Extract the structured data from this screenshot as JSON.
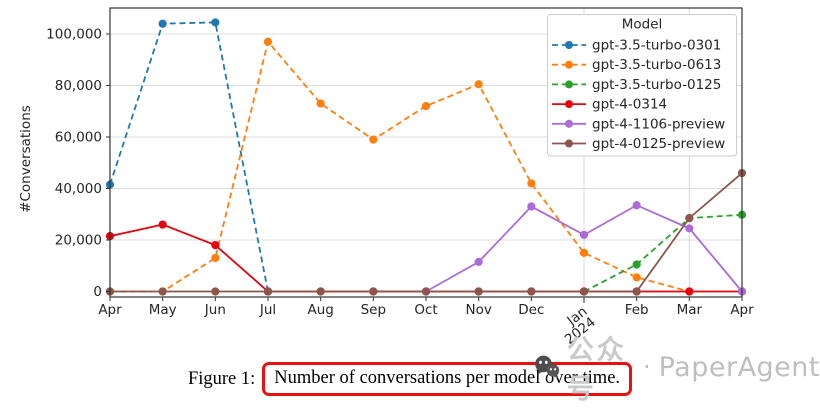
{
  "figure": {
    "caption_prefix": "Figure 1:",
    "caption_boxed": "Number of conversations per model over time.",
    "highlight_box_color": "#ea1010"
  },
  "watermark": {
    "logo_icon": "wechat-logo-icon",
    "brand_cn": "公众号",
    "separator": "·",
    "brand_en": "PaperAgent",
    "text_color": "#c4c4c4"
  },
  "chart_data": {
    "type": "line",
    "title": "",
    "xlabel": "",
    "ylabel": "#Conversations",
    "legend_title": "Model",
    "legend_position": "upper right",
    "grid": true,
    "categories": [
      "Apr",
      "May",
      "Jun",
      "Jul",
      "Aug",
      "Sep",
      "Oct",
      "Nov",
      "Dec",
      "Jan 2024",
      "Feb",
      "Mar",
      "Apr"
    ],
    "rotated_tick_index": 9,
    "rotated_tick_lines": [
      "Jan",
      "2024"
    ],
    "vgrid_categories": [
      9,
      11
    ],
    "yticks": [
      0,
      20000,
      40000,
      60000,
      80000,
      100000
    ],
    "ytick_labels": [
      "0",
      "20,000",
      "40,000",
      "60,000",
      "80,000",
      "100,000"
    ],
    "ylim": [
      -2500,
      110000
    ],
    "series": [
      {
        "name": "gpt-3.5-turbo-0301",
        "color": "#1f77b4",
        "line_style": "dashed",
        "values": [
          41500,
          104000,
          104500,
          0,
          null,
          null,
          null,
          null,
          null,
          null,
          null,
          null,
          null
        ]
      },
      {
        "name": "gpt-3.5-turbo-0613",
        "color": "#ff7f0e",
        "line_style": "dashed",
        "values": [
          0,
          0,
          13000,
          97000,
          73000,
          59000,
          72000,
          80500,
          42000,
          15000,
          5500,
          0,
          null
        ]
      },
      {
        "name": "gpt-3.5-turbo-0125",
        "color": "#2ba02b",
        "line_style": "dashed",
        "values": [
          null,
          null,
          null,
          null,
          null,
          null,
          null,
          null,
          null,
          0,
          10500,
          28500,
          29800
        ]
      },
      {
        "name": "gpt-4-0314",
        "color": "#e8000b",
        "line_style": "solid",
        "values": [
          21500,
          26000,
          18000,
          0,
          0,
          0,
          0,
          0,
          0,
          0,
          0,
          0,
          0
        ]
      },
      {
        "name": "gpt-4-1106-preview",
        "color": "#ab6bd8",
        "line_style": "solid",
        "values": [
          null,
          null,
          null,
          null,
          null,
          null,
          0,
          11500,
          33000,
          22000,
          33500,
          24500,
          0
        ]
      },
      {
        "name": "gpt-4-0125-preview",
        "color": "#8c564b",
        "line_style": "solid",
        "values": [
          0,
          0,
          0,
          0,
          0,
          0,
          0,
          0,
          0,
          0,
          0,
          28500,
          46000
        ]
      }
    ]
  }
}
